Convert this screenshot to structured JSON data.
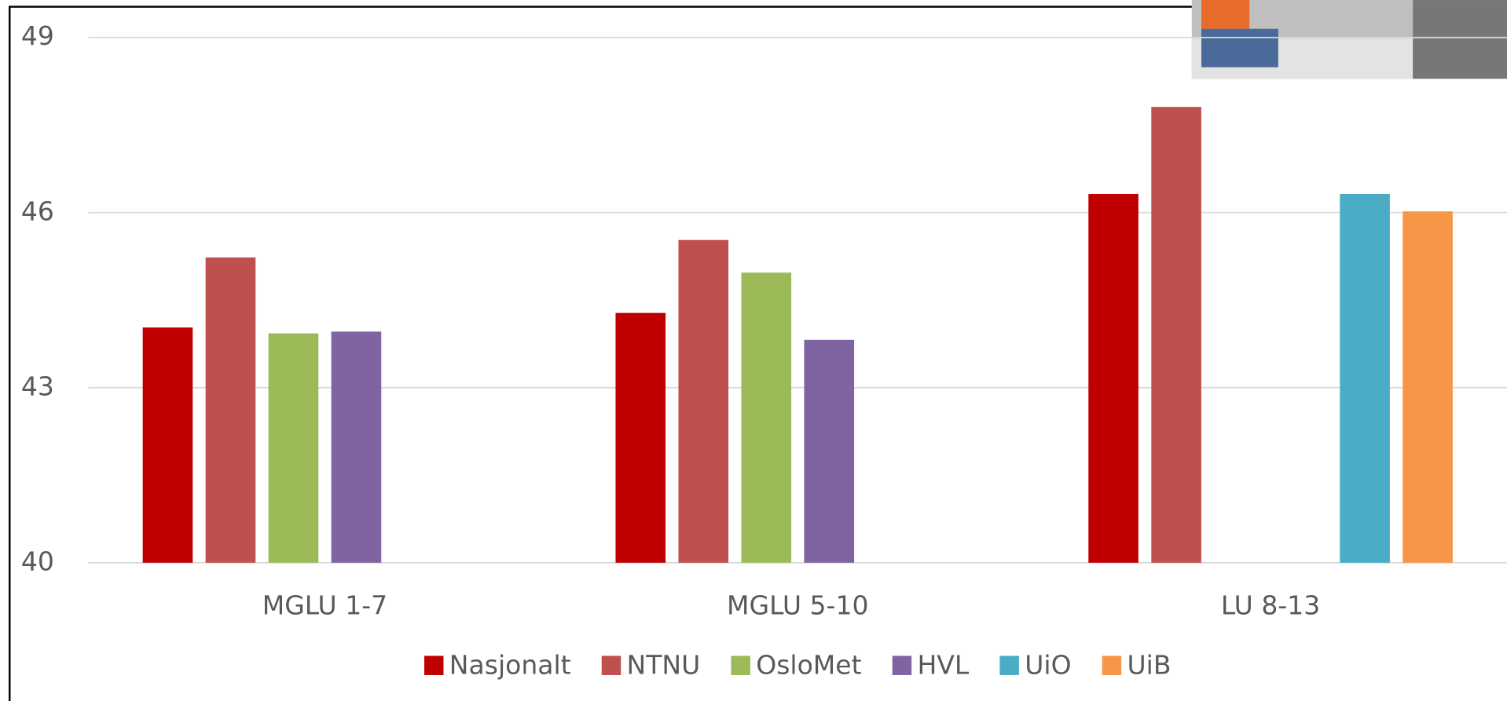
{
  "chart_data": {
    "type": "bar",
    "categories": [
      "MGLU 1-7",
      "MGLU 5-10",
      "LU 8-13"
    ],
    "series": [
      {
        "name": "Nasjonalt",
        "color": "#c00000",
        "values": [
          44.03,
          44.28,
          46.32
        ]
      },
      {
        "name": "NTNU",
        "color": "#c0504d",
        "values": [
          45.23,
          45.53,
          47.81
        ]
      },
      {
        "name": "OsloMet",
        "color": "#9bbb59",
        "values": [
          43.93,
          44.97,
          null
        ]
      },
      {
        "name": "HVL",
        "color": "#8064a2",
        "values": [
          43.96,
          43.82,
          null
        ]
      },
      {
        "name": "UiO",
        "color": "#4bacc6",
        "values": [
          null,
          null,
          46.32
        ]
      },
      {
        "name": "UiB",
        "color": "#f79646",
        "values": [
          null,
          null,
          46.02
        ]
      }
    ],
    "ylim": [
      40,
      49
    ],
    "yticks": [
      40,
      43,
      46,
      49
    ],
    "grid": true,
    "legend": "bottom"
  }
}
